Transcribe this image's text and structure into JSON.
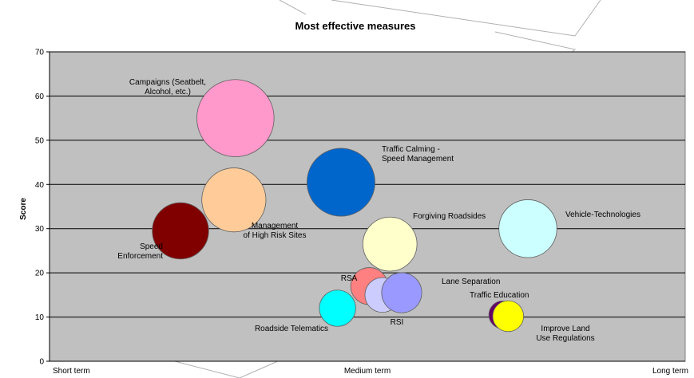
{
  "chart_data": {
    "type": "bubble",
    "title": "Most effective measures",
    "ylabel": "Score",
    "xlabel": "",
    "ylim": [
      0,
      70
    ],
    "y_ticks": [
      0,
      10,
      20,
      30,
      40,
      50,
      60,
      70
    ],
    "x_ticks": [
      {
        "label": "Short term",
        "x": 0
      },
      {
        "label": "Medium term",
        "x": 1
      },
      {
        "label": "Long term",
        "x": 2
      }
    ],
    "xlim": [
      0,
      2
    ],
    "grid": true,
    "plot_background": "#c0c0c0",
    "points": [
      {
        "label": "Campaigns (Seatbelt,\nAlcohol, etc.)",
        "x": 0.585,
        "y": 55,
        "size": 1.0,
        "color": "#ff99cc",
        "label_pos": "above-left"
      },
      {
        "label": "Management\nof High Risk Sites",
        "x": 0.58,
        "y": 36.5,
        "size": 0.83,
        "color": "#ffcc99",
        "label_pos": "below-right"
      },
      {
        "label": "Speed\nEnforcement",
        "x": 0.412,
        "y": 29.5,
        "size": 0.73,
        "color": "#800000",
        "label_pos": "left"
      },
      {
        "label": "Traffic Calming -\nSpeed Management",
        "x": 0.917,
        "y": 40.5,
        "size": 0.88,
        "color": "#0066cc",
        "label_pos": "right"
      },
      {
        "label": "Forgiving Roadsides",
        "x": 1.071,
        "y": 26.5,
        "size": 0.7,
        "color": "#ffffcc",
        "label_pos": "above-right"
      },
      {
        "label": "Vehicle-Technologies",
        "x": 1.505,
        "y": 30,
        "size": 0.75,
        "color": "#ccffff",
        "label_pos": "right"
      },
      {
        "label": "RSA",
        "x": 1.006,
        "y": 17,
        "size": 0.48,
        "color": "#ff8080",
        "label_pos": "left"
      },
      {
        "label": "RSI",
        "x": 1.047,
        "y": 15,
        "size": 0.45,
        "color": "#ccccff",
        "label_pos": "below"
      },
      {
        "label": "Lane Separation",
        "x": 1.108,
        "y": 15.5,
        "size": 0.52,
        "color": "#9999ff",
        "label_pos": "right"
      },
      {
        "label": "Roadside Telematics",
        "x": 0.906,
        "y": 12,
        "size": 0.47,
        "color": "#00ffff",
        "label_pos": "below-left"
      },
      {
        "label": "Traffic Education",
        "x": 1.426,
        "y": 10.5,
        "size": 0.36,
        "color": "#660066",
        "label_pos": "above-right"
      },
      {
        "label": "Improve Land\nUse Regulations",
        "x": 1.443,
        "y": 10.2,
        "size": 0.4,
        "color": "#ffff00",
        "label_pos": "below-right"
      }
    ]
  }
}
